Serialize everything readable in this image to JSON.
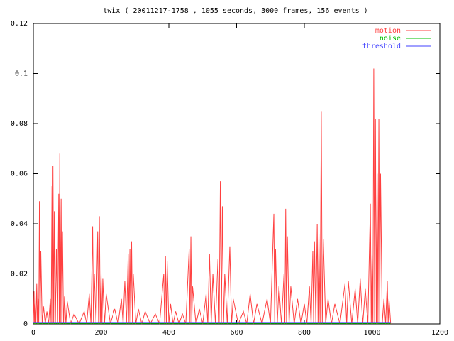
{
  "chart_data": {
    "type": "line",
    "title": "twix ( 20011217-1758 , 1055 seconds, 3000 frames, 156 events )",
    "xlim": [
      0,
      1200
    ],
    "xticks": [
      0,
      200,
      400,
      600,
      800,
      1000,
      1200
    ],
    "ylim": [
      0,
      0.12
    ],
    "yticks": [
      0,
      0.02,
      0.04,
      0.06,
      0.08,
      0.1,
      0.12
    ],
    "legend": "upper right",
    "series": [
      {
        "name": "motion",
        "color": "#ff4040",
        "x": [
          0,
          2,
          3.5,
          5,
          7.5,
          10,
          12,
          14,
          16,
          18,
          20,
          22,
          26,
          30,
          35,
          40,
          45,
          50,
          52.5,
          55,
          56.5,
          58,
          60,
          62,
          65,
          68,
          71.5,
          75,
          76.5,
          78,
          80,
          82,
          84,
          86,
          89,
          92,
          96,
          100,
          110,
          120,
          135,
          150,
          157.5,
          165,
          170,
          175,
          177.5,
          180,
          185,
          190,
          192.5,
          195,
          197.5,
          200,
          202.5,
          205,
          210,
          215,
          227.5,
          240,
          250,
          260,
          265,
          270,
          275,
          280,
          282.5,
          285,
          287.5,
          290,
          292.5,
          295,
          302.5,
          310,
          320,
          330,
          345,
          360,
          372.5,
          385,
          387.5,
          390,
          392.5,
          395,
          400,
          405,
          412.5,
          420,
          430,
          440,
          450,
          460,
          462.5,
          465,
          467.5,
          470,
          480,
          490,
          500,
          510,
          515,
          520,
          525,
          530,
          537.5,
          545,
          548.5,
          552,
          555,
          558,
          561.5,
          565,
          572.5,
          580,
          585,
          590,
          605,
          620,
          630,
          640,
          650,
          660,
          675,
          690,
          700,
          710,
          712.5,
          715,
          720,
          725,
          732.5,
          740,
          742.5,
          745,
          747.5,
          750,
          755,
          760,
          770,
          780,
          790,
          800,
          807.5,
          815,
          820,
          825,
          827.5,
          830,
          834,
          838,
          840.5,
          843,
          846.5,
          850,
          853,
          856,
          863,
          870,
          880,
          890,
          905,
          920,
          925,
          930,
          940,
          950,
          957.5,
          965,
          972.5,
          980,
          987.5,
          995,
          997.5,
          1000,
          1002.5,
          1005,
          1007.5,
          1010,
          1012.5,
          1015,
          1017.5,
          1020,
          1022.5,
          1025,
          1030,
          1035,
          1040,
          1045,
          1047.5,
          1050,
          1055
        ],
        "values": [
          0,
          0.013,
          0,
          0.008,
          0,
          0.016,
          0,
          0.01,
          0,
          0.049,
          0,
          0.029,
          0,
          0.007,
          0,
          0.005,
          0,
          0.01,
          0,
          0.055,
          0,
          0.063,
          0,
          0.045,
          0,
          0.03,
          0,
          0.052,
          0,
          0.068,
          0,
          0.05,
          0,
          0.037,
          0,
          0.011,
          0,
          0.009,
          0,
          0.004,
          0,
          0.005,
          0,
          0.012,
          0,
          0.039,
          0,
          0.02,
          0,
          0.037,
          0,
          0.043,
          0,
          0.02,
          0,
          0.018,
          0,
          0.012,
          0,
          0.006,
          0,
          0.01,
          0,
          0.017,
          0,
          0.028,
          0,
          0.03,
          0,
          0.033,
          0,
          0.02,
          0,
          0.006,
          0,
          0.005,
          0,
          0.004,
          0,
          0.02,
          0,
          0.027,
          0,
          0.025,
          0,
          0.008,
          0,
          0.005,
          0,
          0.004,
          0,
          0.03,
          0,
          0.035,
          0,
          0.015,
          0,
          0.006,
          0,
          0.012,
          0,
          0.028,
          0,
          0.02,
          0,
          0.026,
          0,
          0.057,
          0,
          0.047,
          0,
          0.02,
          0,
          0.031,
          0,
          0.01,
          0,
          0.005,
          0,
          0.012,
          0,
          0.008,
          0,
          0.01,
          0,
          0.044,
          0,
          0.03,
          0,
          0.015,
          0,
          0.02,
          0,
          0.046,
          0,
          0.035,
          0,
          0.015,
          0,
          0.01,
          0,
          0.008,
          0,
          0.015,
          0,
          0.029,
          0,
          0.033,
          0,
          0.04,
          0,
          0.036,
          0,
          0.085,
          0,
          0.034,
          0,
          0.01,
          0,
          0.008,
          0,
          0.016,
          0,
          0.017,
          0,
          0.014,
          0,
          0.018,
          0,
          0.014,
          0,
          0.048,
          0,
          0.028,
          0,
          0.102,
          0,
          0.082,
          0,
          0.06,
          0,
          0.082,
          0,
          0.06,
          0,
          0.01,
          0,
          0.017,
          0,
          0.01,
          0
        ]
      },
      {
        "name": "noise",
        "color": "#00c000",
        "x": [
          0,
          1055
        ],
        "values": [
          0.0002,
          0.0002
        ]
      },
      {
        "name": "threshold",
        "color": "#4040ff",
        "x": [
          0,
          1055
        ],
        "values": [
          0.0006,
          0.0006
        ]
      }
    ]
  }
}
